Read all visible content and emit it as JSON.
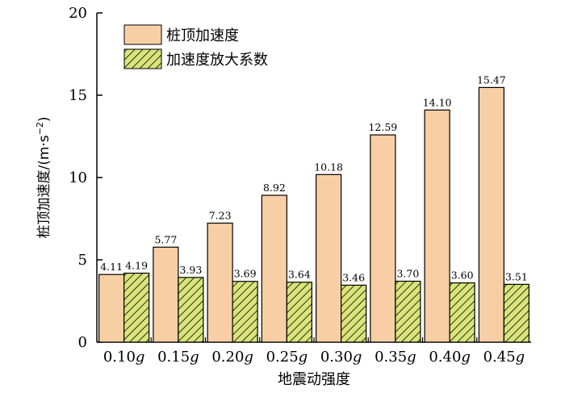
{
  "chart_data": {
    "type": "bar",
    "xlabel": "地震动强度",
    "ylabel": "桩顶加速度/(m·s",
    "ylabel_sup": "−2",
    "ylabel_close": ")",
    "ylim": [
      0,
      20
    ],
    "yticks": [
      0,
      5,
      10,
      15,
      20
    ],
    "categories": [
      "0.10",
      "0.15",
      "0.20",
      "0.25",
      "0.30",
      "0.35",
      "0.40",
      "0.45"
    ],
    "category_suffix": "g",
    "legend_position": "top-left",
    "grid": false,
    "series": [
      {
        "name": "桩顶加速度",
        "color": "#f8cfa5",
        "pattern": "solid",
        "values": [
          4.11,
          5.77,
          7.23,
          8.92,
          10.18,
          12.59,
          14.1,
          15.47
        ],
        "labels": [
          "4.11",
          "5.77",
          "7.23",
          "8.92",
          "10.18",
          "12.59",
          "14.10",
          "15.47"
        ]
      },
      {
        "name": "加速度放大系数",
        "color": "#d9e47a",
        "pattern": "hatch",
        "values": [
          4.19,
          3.93,
          3.69,
          3.64,
          3.46,
          3.7,
          3.6,
          3.51
        ],
        "labels": [
          "4.19",
          "3.93",
          "3.69",
          "3.64",
          "3.46",
          "3.70",
          "3.60",
          "3.51"
        ]
      }
    ]
  }
}
